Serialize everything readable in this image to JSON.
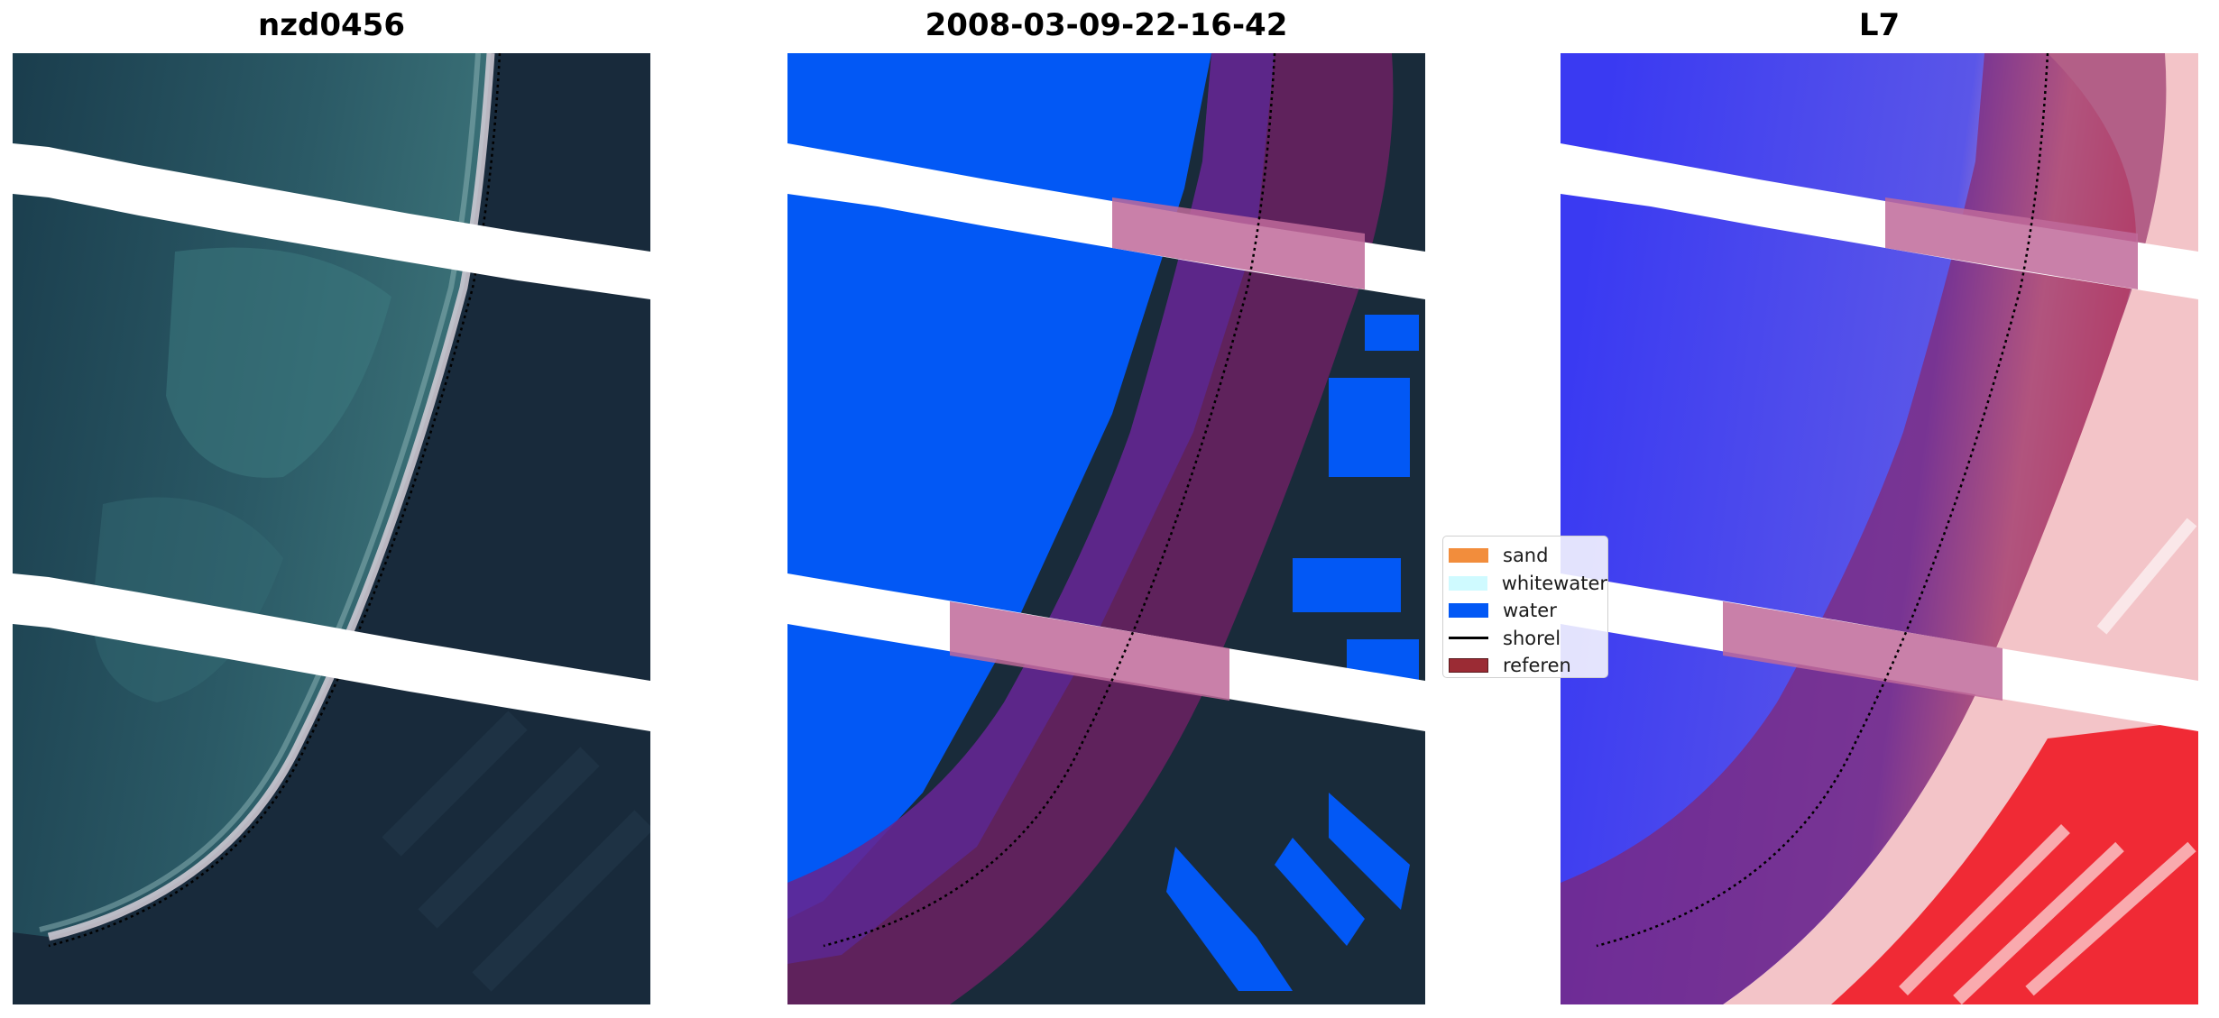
{
  "panels": [
    {
      "id": "rgb",
      "title": "nzd0456"
    },
    {
      "id": "classified",
      "title": "2008-03-09-22-16-42"
    },
    {
      "id": "index",
      "title": "L7"
    }
  ],
  "legend": {
    "items": [
      {
        "label": "sand",
        "kind": "patch",
        "color": "#f28d3c"
      },
      {
        "label": "whitewater",
        "kind": "patch",
        "color": "#cffaff"
      },
      {
        "label": "water",
        "kind": "patch",
        "color": "#0258f5"
      },
      {
        "label": "shorel",
        "kind": "line",
        "color": "#000000"
      },
      {
        "label": "referen",
        "kind": "patch",
        "color": "#9b2b34"
      }
    ]
  },
  "colors": {
    "deep_water": "#1d3f50",
    "shallow_water": "#2e5f6a",
    "land": "#17263a",
    "water_class": "#0258f5",
    "buffer_overlay": "#7a1e6a",
    "index_water": "#3a3af2",
    "index_land": "#f02a35",
    "no_data": "#ffffff"
  }
}
